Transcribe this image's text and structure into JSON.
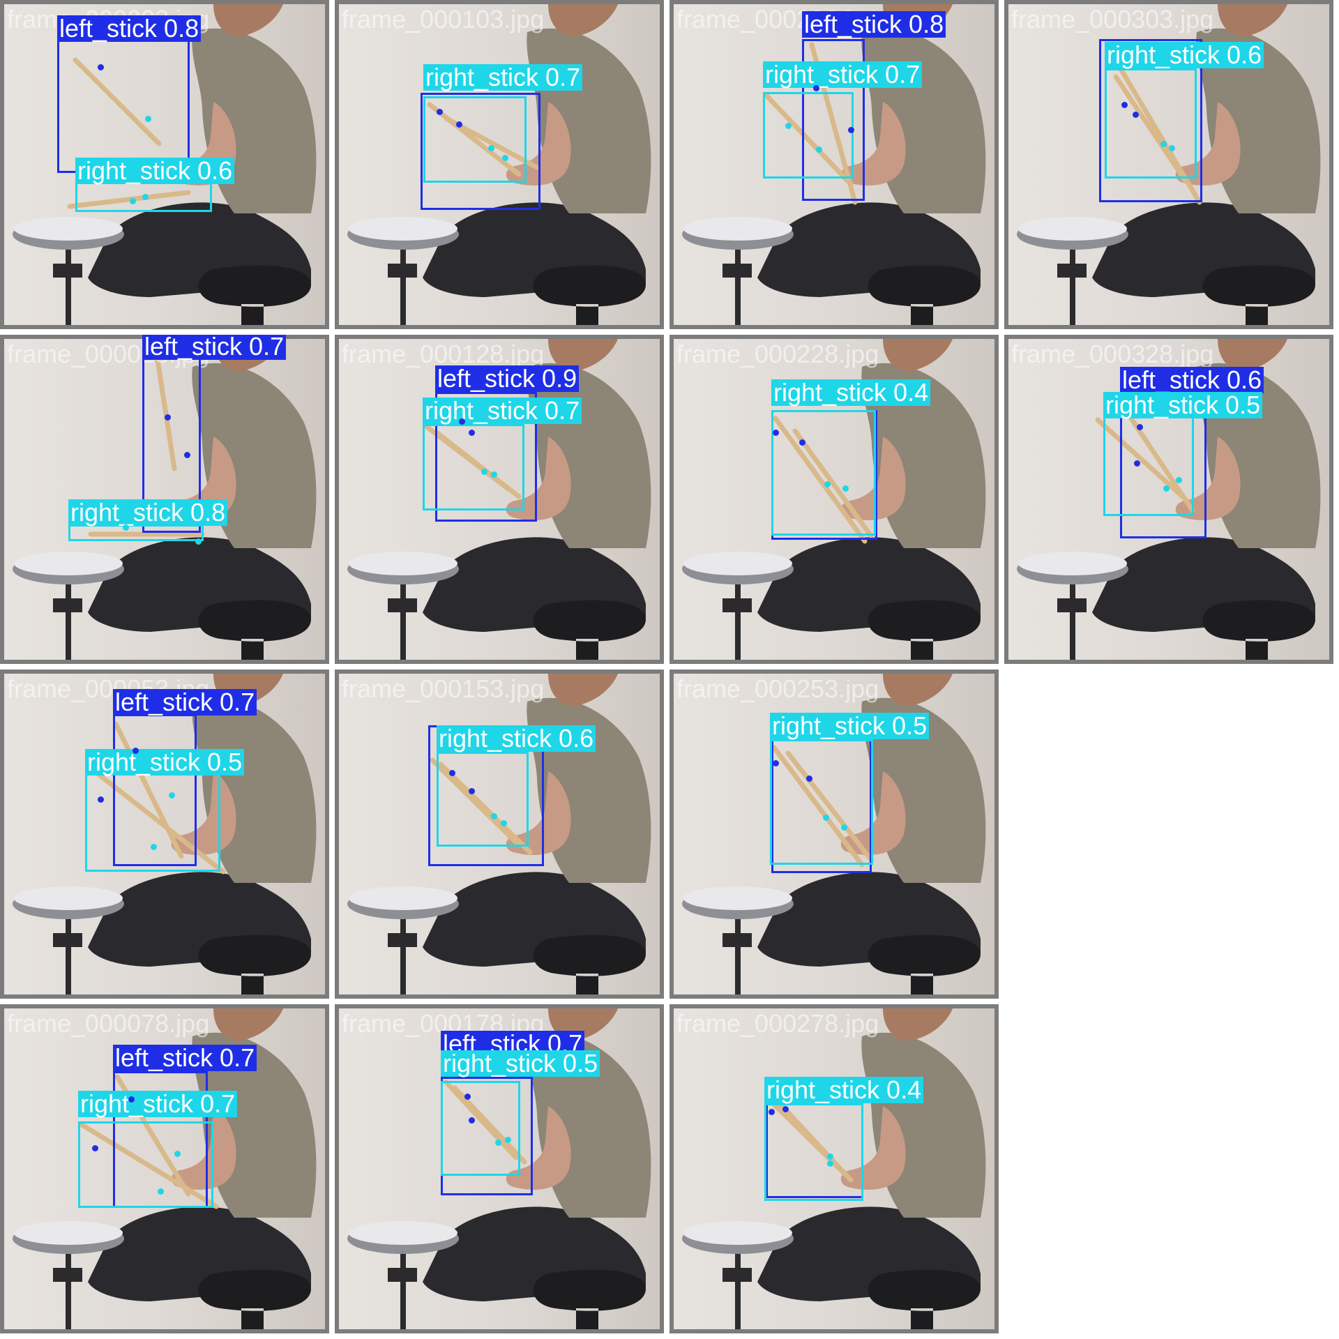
{
  "colors": {
    "left_stick": "#1f2ee6",
    "right_stick": "#1ed6e8",
    "tile_border": "#7c7c7c",
    "shirt": "#8d8576",
    "pants": "#2a2a2e",
    "skin": "#c79a86",
    "stick": "#d9b98a"
  },
  "tiles": [
    {
      "filename": "frame_000003.jpg",
      "detections": [
        {
          "class": "left_stick",
          "label": "left_stick 0.8"
        },
        {
          "class": "right_stick",
          "label": "right_stick 0.6"
        }
      ]
    },
    {
      "filename": "frame_000103.jpg",
      "detections": [
        {
          "class": "left_stick",
          "label": ""
        },
        {
          "class": "right_stick",
          "label": "right_stick 0.7"
        }
      ]
    },
    {
      "filename": "frame_000203.jpg",
      "detections": [
        {
          "class": "left_stick",
          "label": "left_stick 0.8"
        },
        {
          "class": "right_stick",
          "label": "right_stick 0.7"
        }
      ]
    },
    {
      "filename": "frame_000303.jpg",
      "detections": [
        {
          "class": "left_stick",
          "label": ""
        },
        {
          "class": "right_stick",
          "label": "right_stick 0.6"
        }
      ]
    },
    {
      "filename": "frame_000028.jpg",
      "detections": [
        {
          "class": "left_stick",
          "label": "left_stick 0.7"
        },
        {
          "class": "right_stick",
          "label": "right_stick 0.8"
        }
      ]
    },
    {
      "filename": "frame_000128.jpg",
      "detections": [
        {
          "class": "left_stick",
          "label": "left_stick 0.9"
        },
        {
          "class": "right_stick",
          "label": "right_stick 0.7"
        }
      ]
    },
    {
      "filename": "frame_000228.jpg",
      "detections": [
        {
          "class": "left_stick",
          "label": ""
        },
        {
          "class": "right_stick",
          "label": "right_stick 0.4"
        }
      ]
    },
    {
      "filename": "frame_000328.jpg",
      "detections": [
        {
          "class": "left_stick",
          "label": "left_stick 0.6"
        },
        {
          "class": "right_stick",
          "label": "right_stick 0.5"
        }
      ]
    },
    {
      "filename": "frame_000053.jpg",
      "detections": [
        {
          "class": "left_stick",
          "label": "left_stick 0.7"
        },
        {
          "class": "right_stick",
          "label": "right_stick 0.5"
        }
      ]
    },
    {
      "filename": "frame_000153.jpg",
      "detections": [
        {
          "class": "left_stick",
          "label": ""
        },
        {
          "class": "right_stick",
          "label": "right_stick 0.6"
        }
      ]
    },
    {
      "filename": "frame_000253.jpg",
      "detections": [
        {
          "class": "left_stick",
          "label": ""
        },
        {
          "class": "right_stick",
          "label": "right_stick 0.5"
        }
      ]
    },
    {
      "filename": "frame_000078.jpg",
      "detections": [
        {
          "class": "left_stick",
          "label": "left_stick 0.7"
        },
        {
          "class": "right_stick",
          "label": "right_stick 0.7"
        }
      ]
    },
    {
      "filename": "frame_000178.jpg",
      "detections": [
        {
          "class": "left_stick",
          "label": "left_stick 0.7"
        },
        {
          "class": "right_stick",
          "label": "right_stick 0.5"
        }
      ]
    },
    {
      "filename": "frame_000278.jpg",
      "detections": [
        {
          "class": "left_stick",
          "label": ""
        },
        {
          "class": "right_stick",
          "label": "right_stick 0.4"
        }
      ]
    }
  ]
}
